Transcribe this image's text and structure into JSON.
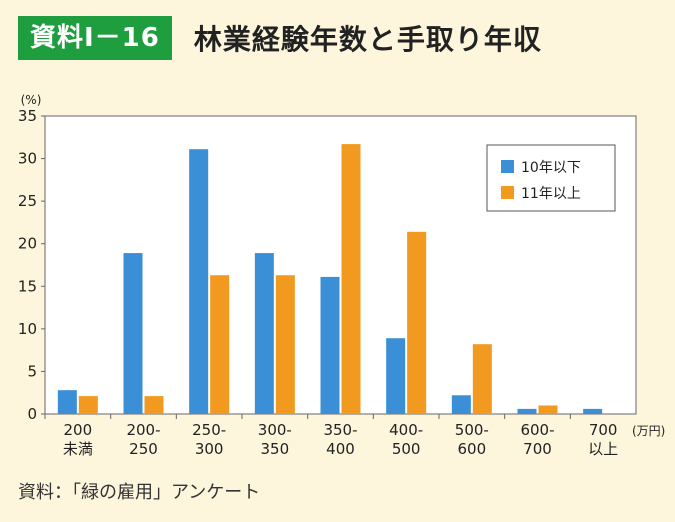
{
  "header": {
    "badge": "資料Ⅰ－16",
    "title": "林業経験年数と手取り年収"
  },
  "source": "資料：「緑の雇用」アンケート",
  "colors": {
    "series1": "#3b8fd6",
    "series2": "#f29a1f",
    "badge_bg": "#1e9e3e",
    "background": "#fdf5dc",
    "plot_bg": "#ffffff"
  },
  "chart_data": {
    "type": "bar",
    "title": "林業経験年数と手取り年収",
    "ylabel": "(%)",
    "xlabel": "(万円)",
    "ylim": [
      0,
      35
    ],
    "yticks": [
      0,
      5,
      10,
      15,
      20,
      25,
      30,
      35
    ],
    "grid": false,
    "legend_position": "top-right",
    "categories": [
      [
        "200",
        "未満"
      ],
      [
        "200-",
        "250"
      ],
      [
        "250-",
        "300"
      ],
      [
        "300-",
        "350"
      ],
      [
        "350-",
        "400"
      ],
      [
        "400-",
        "500"
      ],
      [
        "500-",
        "600"
      ],
      [
        "600-",
        "700"
      ],
      [
        "700",
        "以上"
      ]
    ],
    "series": [
      {
        "name": "10年以下",
        "values": [
          2.8,
          18.9,
          31.1,
          18.9,
          16.1,
          8.9,
          2.2,
          0.6,
          0.6
        ]
      },
      {
        "name": "11年以上",
        "values": [
          2.1,
          2.1,
          16.3,
          16.3,
          31.7,
          21.4,
          8.2,
          1.0,
          0
        ]
      }
    ]
  }
}
